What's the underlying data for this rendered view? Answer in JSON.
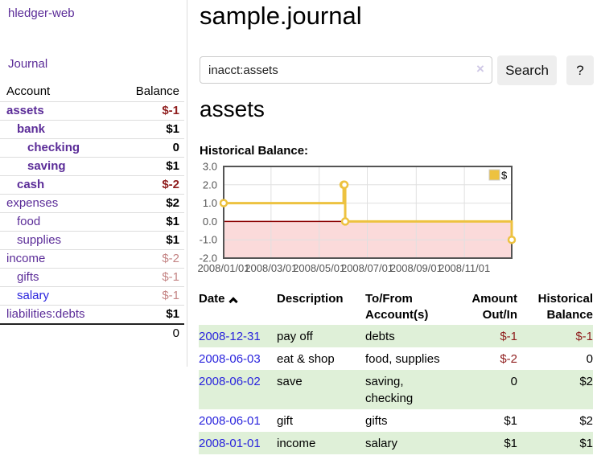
{
  "sidebar": {
    "app_title": "hledger-web",
    "journal_label": "Journal",
    "accounts_table": {
      "headers": {
        "account": "Account",
        "balance": "Balance"
      },
      "rows": [
        {
          "name": "assets",
          "balance": "$-1",
          "depth": 1,
          "bold": true,
          "balance_tone": "neg-strong",
          "link_tone": "purple"
        },
        {
          "name": "bank",
          "balance": "$1",
          "depth": 2,
          "bold": true,
          "balance_tone": "normal",
          "link_tone": "purple"
        },
        {
          "name": "checking",
          "balance": "0",
          "depth": 3,
          "bold": true,
          "balance_tone": "normal",
          "link_tone": "purple"
        },
        {
          "name": "saving",
          "balance": "$1",
          "depth": 3,
          "bold": true,
          "balance_tone": "normal",
          "link_tone": "purple"
        },
        {
          "name": "cash",
          "balance": "$-2",
          "depth": 2,
          "bold": true,
          "balance_tone": "neg-strong",
          "link_tone": "purple"
        },
        {
          "name": "expenses",
          "balance": "$2",
          "depth": 1,
          "bold": false,
          "balance_tone": "normal",
          "link_tone": "purple"
        },
        {
          "name": "food",
          "balance": "$1",
          "depth": 2,
          "bold": false,
          "balance_tone": "normal",
          "link_tone": "purple"
        },
        {
          "name": "supplies",
          "balance": "$1",
          "depth": 2,
          "bold": false,
          "balance_tone": "normal",
          "link_tone": "purple"
        },
        {
          "name": "income",
          "balance": "$-2",
          "depth": 1,
          "bold": false,
          "balance_tone": "neg-soft",
          "link_tone": "purple"
        },
        {
          "name": "gifts",
          "balance": "$-1",
          "depth": 2,
          "bold": false,
          "balance_tone": "neg-soft",
          "link_tone": "purple"
        },
        {
          "name": "salary",
          "balance": "$-1",
          "depth": 2,
          "bold": false,
          "balance_tone": "neg-soft",
          "link_tone": "blue"
        },
        {
          "name": "liabilities:debts",
          "balance": "$1",
          "depth": 1,
          "bold": false,
          "balance_tone": "normal",
          "link_tone": "purple"
        }
      ],
      "total": "0"
    }
  },
  "header": {
    "title": "sample.journal"
  },
  "search": {
    "query": "inacct:assets",
    "clear_icon": "×",
    "search_button_label": "Search",
    "help_button_label": "?"
  },
  "account_page": {
    "heading": "assets",
    "chart_label": "Historical Balance:"
  },
  "chart_data": {
    "type": "line",
    "title": "Historical Balance:",
    "step": true,
    "series": [
      {
        "name": "$",
        "color": "#EDC240",
        "points": [
          [
            "2008-01-01",
            1
          ],
          [
            "2008-06-01",
            2
          ],
          [
            "2008-06-02",
            2
          ],
          [
            "2008-06-03",
            0
          ],
          [
            "2008-12-31",
            -1
          ]
        ]
      }
    ],
    "x_range": [
      "2008-01-01",
      "2008-12-31"
    ],
    "x_tick_labels": [
      "2008/01/01",
      "2008/03/01",
      "2008/05/01",
      "2008/07/01",
      "2008/09/01",
      "2008/11/01"
    ],
    "y_ticks": [
      3,
      2,
      1,
      0,
      -1,
      -2
    ],
    "ylim": [
      -2,
      3
    ],
    "grid": true,
    "legend_position": "top-right",
    "colors": {
      "border": "#545454",
      "gridline": "#e0e0e0",
      "axis_label": "#545454",
      "zero_line": "#8b0000",
      "negative_region": "#fbdada",
      "marker_fill": "#ffffff"
    }
  },
  "register_table": {
    "headers": {
      "date": "Date",
      "description": "Description",
      "accounts": "To/From Account(s)",
      "amount": "Amount Out/In",
      "balance": "Historical Balance"
    },
    "rows": [
      {
        "date": "2008-12-31",
        "description": "pay off",
        "accounts": "debts",
        "amount": "$-1",
        "balance": "$-1",
        "amount_negative": true,
        "balance_negative": true
      },
      {
        "date": "2008-06-03",
        "description": "eat & shop",
        "accounts": "food, supplies",
        "amount": "$-2",
        "balance": "0",
        "amount_negative": true,
        "balance_negative": false
      },
      {
        "date": "2008-06-02",
        "description": "save",
        "accounts": "saving, checking",
        "amount": "0",
        "balance": "$2",
        "amount_negative": false,
        "balance_negative": false
      },
      {
        "date": "2008-06-01",
        "description": "gift",
        "accounts": "gifts",
        "amount": "$1",
        "balance": "$2",
        "amount_negative": false,
        "balance_negative": false
      },
      {
        "date": "2008-01-01",
        "description": "income",
        "accounts": "salary",
        "amount": "$1",
        "balance": "$1",
        "amount_negative": false,
        "balance_negative": false
      }
    ]
  }
}
